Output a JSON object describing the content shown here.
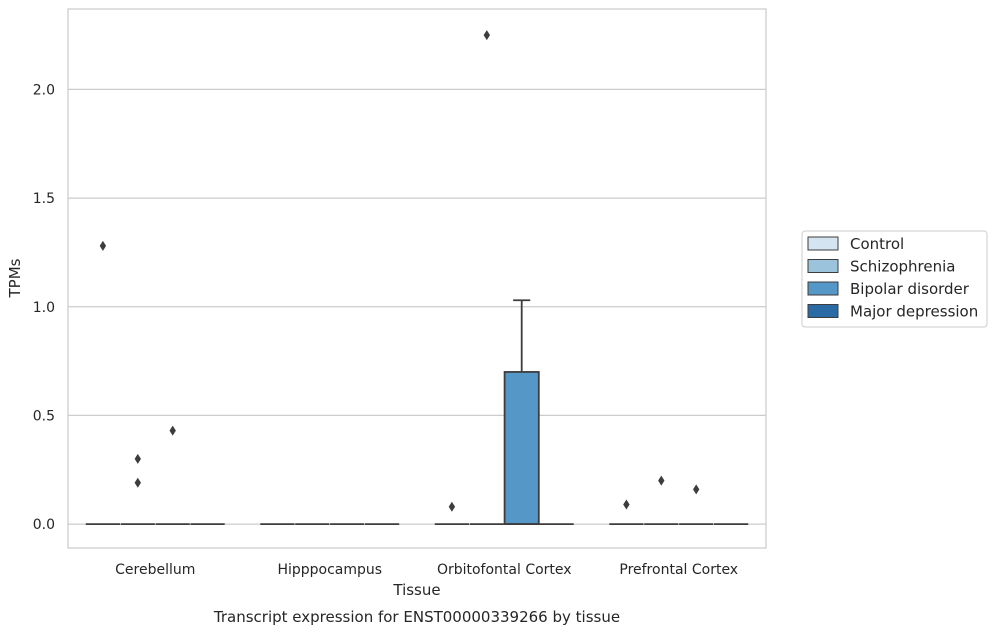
{
  "chart_data": {
    "type": "box",
    "title": "Transcript expression for ENST00000339266 by tissue",
    "xlabel": "Tissue",
    "ylabel": "TPMs",
    "categories": [
      "Cerebellum",
      "Hipppocampus",
      "Orbitofontal Cortex",
      "Prefrontal Cortex"
    ],
    "ylim": [
      -0.11,
      2.37
    ],
    "yticks": [
      0.0,
      0.5,
      1.0,
      1.5,
      2.0
    ],
    "ytick_labels": [
      "0.0",
      "0.5",
      "1.0",
      "1.5",
      "2.0"
    ],
    "grid": "horizontal",
    "legend_position": "right",
    "series": [
      {
        "name": "Control",
        "color": "#d4e4f1",
        "boxes": [
          {
            "q1": 0,
            "median": 0,
            "q3": 0,
            "whisker_low": 0,
            "whisker_high": 0,
            "outliers": [
              1.28
            ]
          },
          {
            "q1": 0,
            "median": 0,
            "q3": 0,
            "whisker_low": 0,
            "whisker_high": 0,
            "outliers": []
          },
          {
            "q1": 0,
            "median": 0,
            "q3": 0,
            "whisker_low": 0,
            "whisker_high": 0,
            "outliers": [
              0.08
            ]
          },
          {
            "q1": 0,
            "median": 0,
            "q3": 0,
            "whisker_low": 0,
            "whisker_high": 0,
            "outliers": [
              0.09
            ]
          }
        ]
      },
      {
        "name": "Schizophrenia",
        "color": "#9cc3dc",
        "boxes": [
          {
            "q1": 0,
            "median": 0,
            "q3": 0,
            "whisker_low": 0,
            "whisker_high": 0,
            "outliers": [
              0.3,
              0.19
            ]
          },
          {
            "q1": 0,
            "median": 0,
            "q3": 0,
            "whisker_low": 0,
            "whisker_high": 0,
            "outliers": []
          },
          {
            "q1": 0,
            "median": 0,
            "q3": 0,
            "whisker_low": 0,
            "whisker_high": 0,
            "outliers": [
              2.25
            ]
          },
          {
            "q1": 0,
            "median": 0,
            "q3": 0,
            "whisker_low": 0,
            "whisker_high": 0,
            "outliers": [
              0.2
            ]
          }
        ]
      },
      {
        "name": "Bipolar disorder",
        "color": "#5597c6",
        "boxes": [
          {
            "q1": 0,
            "median": 0,
            "q3": 0,
            "whisker_low": 0,
            "whisker_high": 0,
            "outliers": [
              0.43
            ]
          },
          {
            "q1": 0,
            "median": 0,
            "q3": 0,
            "whisker_low": 0,
            "whisker_high": 0,
            "outliers": []
          },
          {
            "q1": 0,
            "median": 0,
            "q3": 0.7,
            "whisker_low": 0,
            "whisker_high": 1.03,
            "outliers": []
          },
          {
            "q1": 0,
            "median": 0,
            "q3": 0,
            "whisker_low": 0,
            "whisker_high": 0,
            "outliers": [
              0.16
            ]
          }
        ]
      },
      {
        "name": "Major depression",
        "color": "#2b6ba5",
        "boxes": [
          {
            "q1": 0,
            "median": 0,
            "q3": 0,
            "whisker_low": 0,
            "whisker_high": 0,
            "outliers": []
          },
          {
            "q1": 0,
            "median": 0,
            "q3": 0,
            "whisker_low": 0,
            "whisker_high": 0,
            "outliers": []
          },
          {
            "q1": 0,
            "median": 0,
            "q3": 0,
            "whisker_low": 0,
            "whisker_high": 0,
            "outliers": []
          },
          {
            "q1": 0,
            "median": 0,
            "q3": 0,
            "whisker_low": 0,
            "whisker_high": 0,
            "outliers": []
          }
        ]
      }
    ]
  }
}
